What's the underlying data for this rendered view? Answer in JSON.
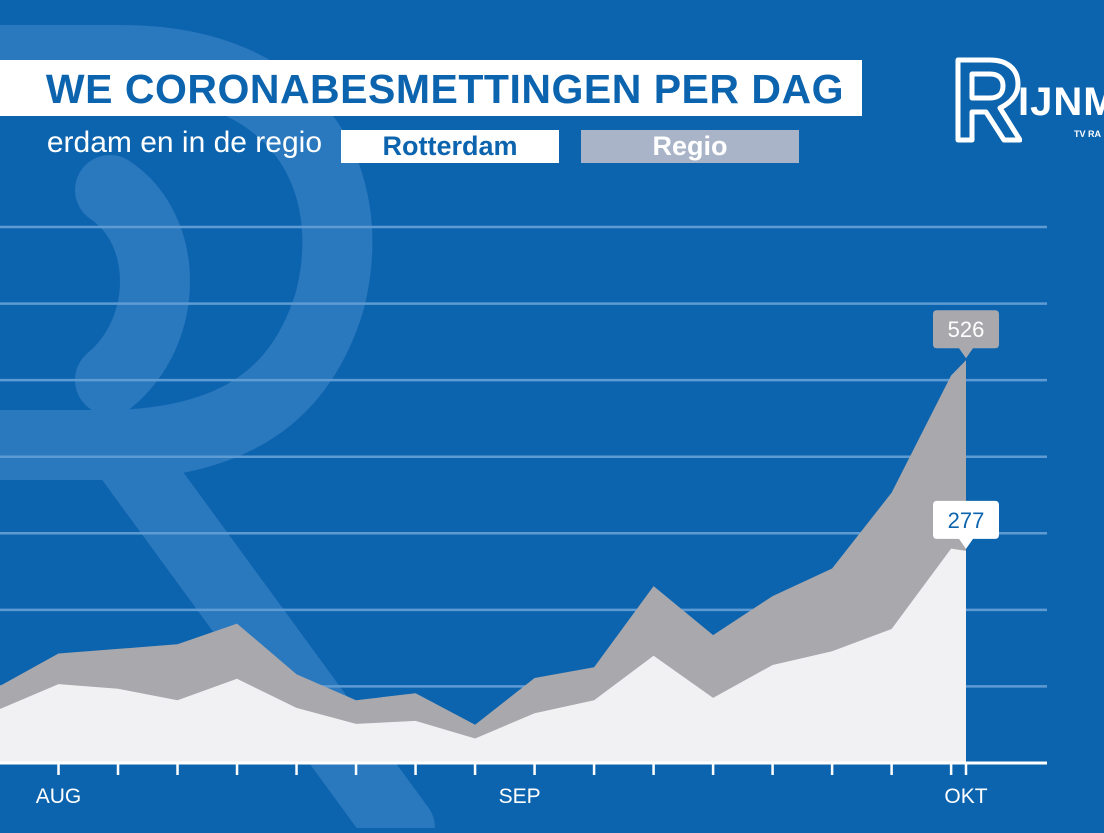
{
  "header": {
    "title": "WE CORONABESMETTINGEN PER DAG",
    "subtitle": "erdam en in de regio"
  },
  "legend": {
    "rotterdam": "Rotterdam",
    "regio": "Regio"
  },
  "logo": {
    "text": "IJNM",
    "sub": "TV RA"
  },
  "colors": {
    "background": "#0d64ae",
    "watermark": "#2a78be",
    "gridline": "#5f9bd3",
    "axis": "#ffffff",
    "rotterdam_fill": "#f1f1f3",
    "regio_fill": "#a9a9ad",
    "callout_regio": "#a9a9ad",
    "callout_rotterdam": "#ffffff"
  },
  "chart_data": {
    "type": "area",
    "title": "WE CORONABESMETTINGEN PER DAG",
    "subtitle": "erdam en in de regio",
    "x": [
      "2020-07-28",
      "2020-08-01",
      "2020-08-05",
      "2020-08-09",
      "2020-08-13",
      "2020-08-17",
      "2020-08-21",
      "2020-08-25",
      "2020-08-29",
      "2020-09-02",
      "2020-09-06",
      "2020-09-10",
      "2020-09-14",
      "2020-09-18",
      "2020-09-22",
      "2020-09-26",
      "2020-09-30",
      "2020-10-01"
    ],
    "series": [
      {
        "name": "Regio",
        "values": [
          100,
          143,
          149,
          155,
          182,
          116,
          82,
          91,
          50,
          111,
          125,
          231,
          167,
          218,
          254,
          353,
          506,
          526
        ]
      },
      {
        "name": "Rotterdam",
        "values": [
          70,
          103,
          97,
          82,
          110,
          72,
          51,
          55,
          32,
          65,
          82,
          140,
          85,
          128,
          146,
          175,
          280,
          277
        ]
      }
    ],
    "annotations": [
      {
        "series": "Regio",
        "x": "2020-10-01",
        "label": "526"
      },
      {
        "series": "Rotterdam",
        "x": "2020-10-01",
        "label": "277"
      }
    ],
    "x_ticks": [
      {
        "date": "2020-08-01",
        "label": "AUG"
      },
      {
        "date": "2020-09-01",
        "label": "SEP"
      },
      {
        "date": "2020-10-01",
        "label": "OKT"
      }
    ],
    "ylim": [
      0,
      700
    ],
    "y_gridlines": [
      100,
      200,
      300,
      400,
      500,
      600,
      700
    ],
    "grid": true,
    "legend_position": "top"
  }
}
